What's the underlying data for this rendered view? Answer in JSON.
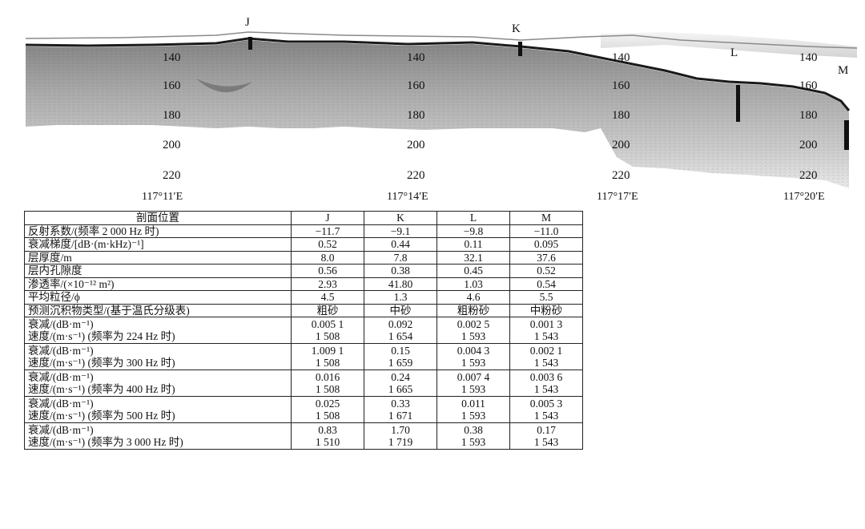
{
  "profile": {
    "site_labels": [
      "J",
      "K",
      "L",
      "M"
    ],
    "depth_labels": [
      "140",
      "160",
      "180",
      "200",
      "220"
    ],
    "longitude_labels": [
      "117°11′E",
      "117°14′E",
      "117°17′E",
      "117°20′E"
    ],
    "colors": {
      "seabed": "#1a1a1a",
      "sediment": "#9a9a9a",
      "background": "#ffffff"
    }
  },
  "table": {
    "header": {
      "label": "剖面位置",
      "sites": [
        "J",
        "K",
        "L",
        "M"
      ]
    },
    "rows": [
      {
        "label": "反射系数/(频率 2 000 Hz 时)",
        "values": [
          "−11.7",
          "−9.1",
          "−9.8",
          "−11.0"
        ]
      },
      {
        "label": "衰减梯度/[dB·(m·kHz)⁻¹]",
        "values": [
          "0.52",
          "0.44",
          "0.11",
          "0.095"
        ]
      },
      {
        "label": "层厚度/m",
        "values": [
          "8.0",
          "7.8",
          "32.1",
          "37.6"
        ]
      },
      {
        "label": "层内孔隙度",
        "values": [
          "0.56",
          "0.38",
          "0.45",
          "0.52"
        ]
      },
      {
        "label": "渗透率/(×10⁻¹² m²)",
        "values": [
          "2.93",
          "41.80",
          "1.03",
          "0.54"
        ]
      },
      {
        "label": "平均粒径/ϕ",
        "values": [
          "4.5",
          "1.3",
          "4.6",
          "5.5"
        ]
      },
      {
        "label": "预测沉积物类型/(基于温氏分级表)",
        "values": [
          "粗砂",
          "中砂",
          "粗粉砂",
          "中粉砂"
        ]
      }
    ],
    "frequency_groups": [
      {
        "att_label": "衰减/(dB·m⁻¹)",
        "vel_label": "速度/(m·s⁻¹) (频率为 224 Hz 时)",
        "att": [
          "0.005 1",
          "0.092",
          "0.002 5",
          "0.001 3"
        ],
        "vel": [
          "1 508",
          "1 654",
          "1 593",
          "1 543"
        ]
      },
      {
        "att_label": "衰减/(dB·m⁻¹)",
        "vel_label": "速度/(m·s⁻¹) (频率为 300 Hz 时)",
        "att": [
          "1.009 1",
          "0.15",
          "0.004 3",
          "0.002 1"
        ],
        "vel": [
          "1 508",
          "1 659",
          "1 593",
          "1 543"
        ]
      },
      {
        "att_label": "衰减/(dB·m⁻¹)",
        "vel_label": "速度/(m·s⁻¹) (频率为 400 Hz 时)",
        "att": [
          "0.016",
          "0.24",
          "0.007 4",
          "0.003 6"
        ],
        "vel": [
          "1 508",
          "1 665",
          "1 593",
          "1 543"
        ]
      },
      {
        "att_label": "衰减/(dB·m⁻¹)",
        "vel_label": "速度/(m·s⁻¹) (频率为 500 Hz 时)",
        "att": [
          "0.025",
          "0.33",
          "0.011",
          "0.005 3"
        ],
        "vel": [
          "1 508",
          "1 671",
          "1 593",
          "1 543"
        ]
      },
      {
        "att_label": "衰减/(dB·m⁻¹)",
        "vel_label": "速度/(m·s⁻¹) (频率为 3 000 Hz 时)",
        "att": [
          "0.83",
          "1.70",
          "0.38",
          "0.17"
        ],
        "vel": [
          "1 510",
          "1 719",
          "1 593",
          "1 543"
        ]
      }
    ]
  }
}
